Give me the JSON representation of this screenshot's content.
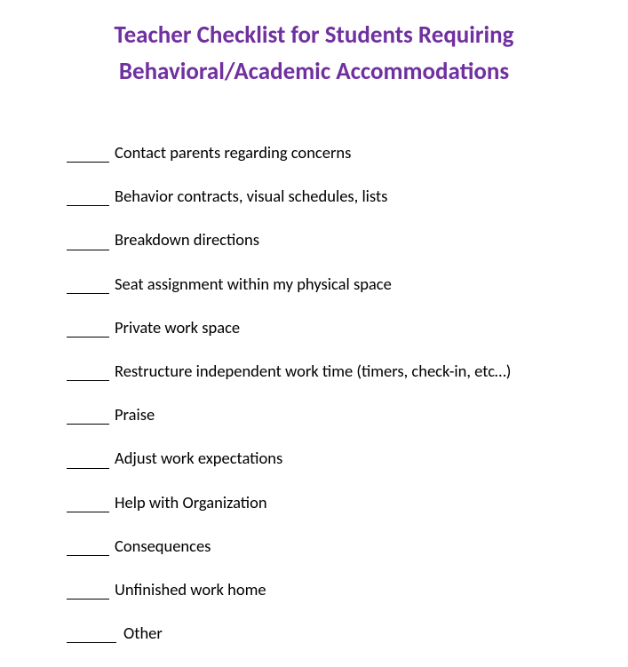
{
  "title": "Teacher Checklist for Students Requiring Behavioral/Academic Accommodations",
  "title_color": "#7030a0",
  "title_fontsize": 27,
  "item_fontsize": 18.5,
  "item_color": "#000000",
  "background_color": "#ffffff",
  "blank_width": 48,
  "blank_wide_width": 56,
  "items": [
    {
      "text": "Contact parents regarding concerns"
    },
    {
      "text": "Behavior contracts, visual schedules, lists"
    },
    {
      "text": "Breakdown directions"
    },
    {
      "text": "Seat assignment within my physical space"
    },
    {
      "text": "Private work space"
    },
    {
      "text": "Restructure independent work time (timers, check-in, etc…)"
    },
    {
      "text": "Praise"
    },
    {
      "text": "Adjust work expectations"
    },
    {
      "text": "Help with Organization"
    },
    {
      "text": "Consequences"
    },
    {
      "text": "Unfinished work home"
    },
    {
      "text": "Other",
      "wide": true
    }
  ]
}
